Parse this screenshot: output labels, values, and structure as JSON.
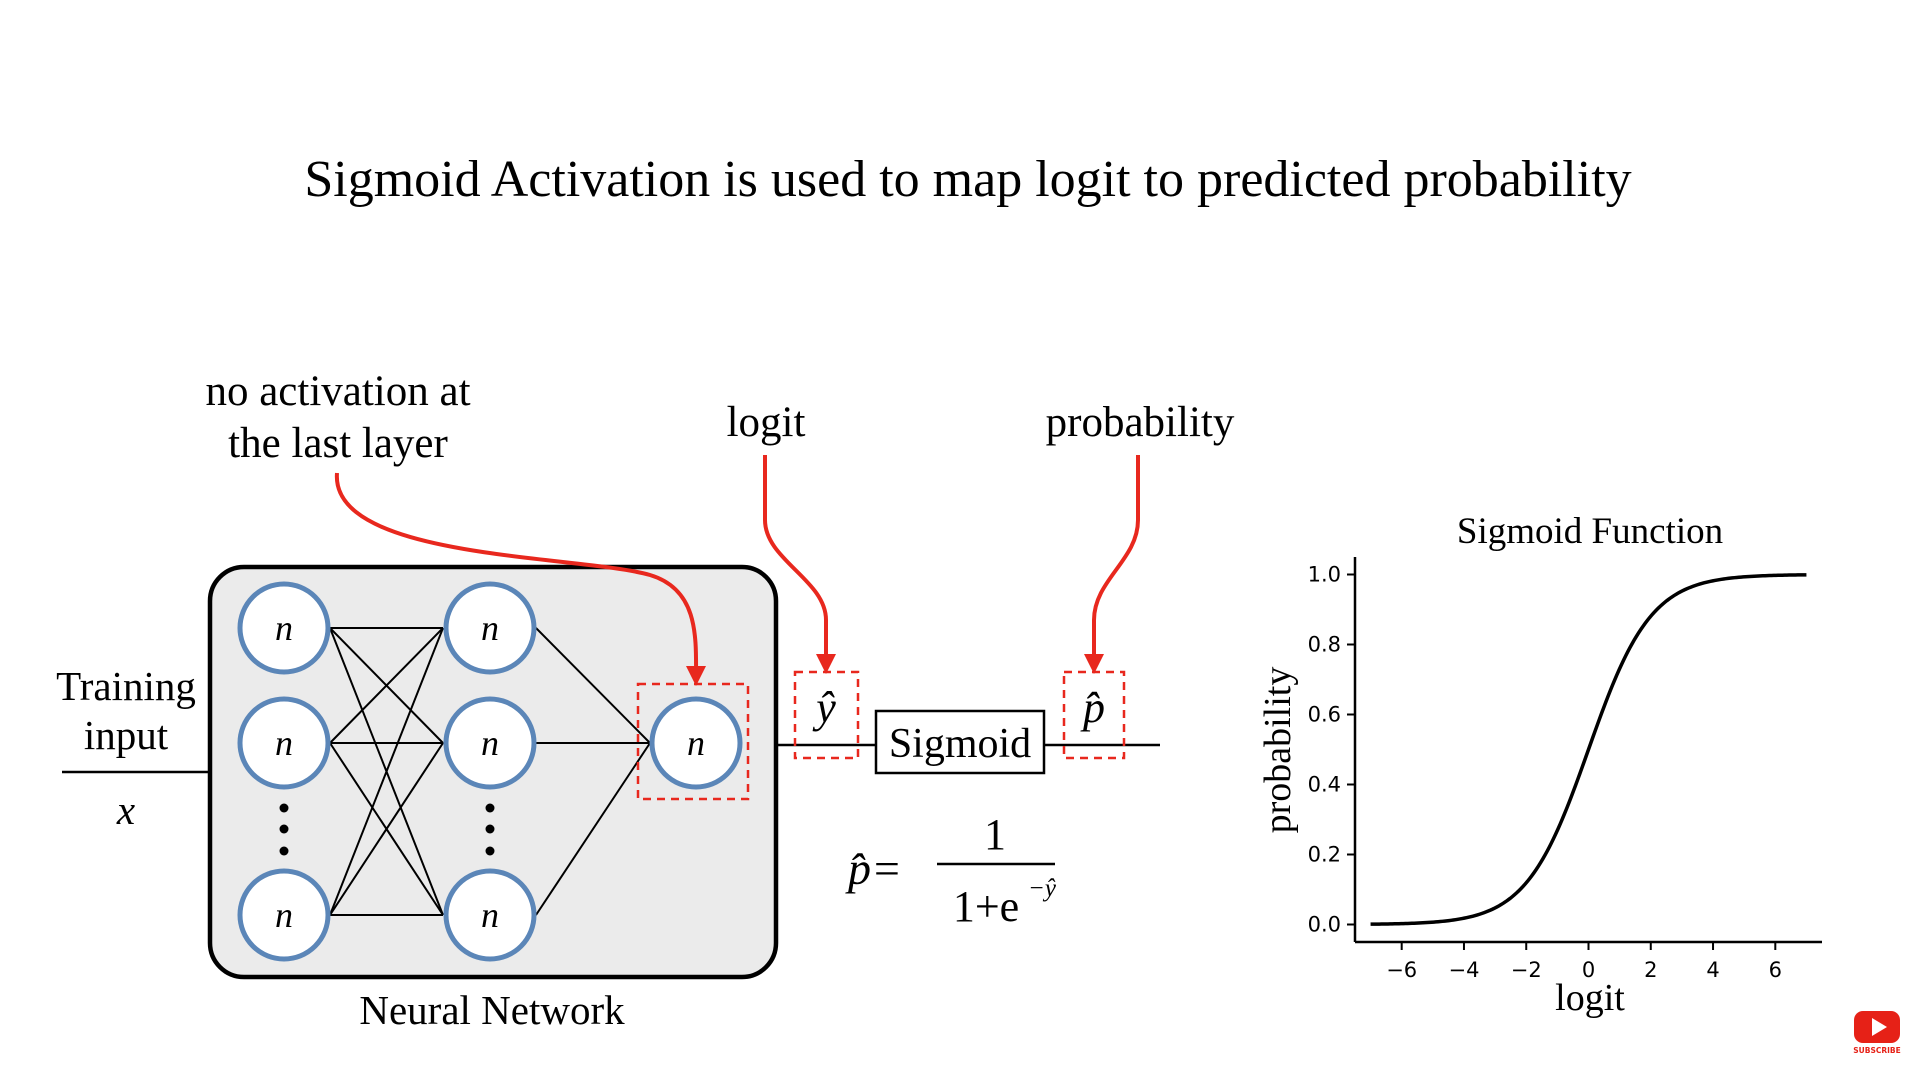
{
  "title": "Sigmoid Activation is used to map logit to predicted probability",
  "annotations": {
    "no_activation_line1": "no activation at",
    "no_activation_line2": "the last layer",
    "logit": "logit",
    "probability": "probability"
  },
  "network": {
    "input_label_line1": "Training",
    "input_label_line2": "input",
    "input_symbol": "x",
    "neuron_symbol": "n",
    "caption": "Neural Network",
    "logit_symbol": "ŷ",
    "prob_symbol": "p̂",
    "sigmoid_box": "Sigmoid"
  },
  "formula": {
    "lhs": "p̂=",
    "numerator": "1",
    "denominator": "1+e",
    "exponent": "−ŷ"
  },
  "chart_data": {
    "type": "line",
    "title": "Sigmoid Function",
    "xlabel": "logit",
    "ylabel": "probability",
    "xlim": [
      -7.5,
      7.5
    ],
    "ylim": [
      -0.05,
      1.05
    ],
    "xticks": [
      "−6",
      "−4",
      "−2",
      "0",
      "2",
      "4",
      "6"
    ],
    "xtick_values": [
      -6,
      -4,
      -2,
      0,
      2,
      4,
      6
    ],
    "yticks": [
      "0.0",
      "0.2",
      "0.4",
      "0.6",
      "0.8",
      "1.0"
    ],
    "ytick_values": [
      0,
      0.2,
      0.4,
      0.6,
      0.8,
      1.0
    ],
    "series": [
      {
        "function": "sigmoid",
        "x_range": [
          -7,
          7
        ],
        "color": "#000000"
      }
    ],
    "grid": false
  },
  "youtube": {
    "label": "SUBSCRIBE",
    "color": "#e62117"
  },
  "colors": {
    "neuron_stroke": "#5b86b8",
    "accent_red": "#e8281e",
    "network_bg": "#ebebeb"
  }
}
